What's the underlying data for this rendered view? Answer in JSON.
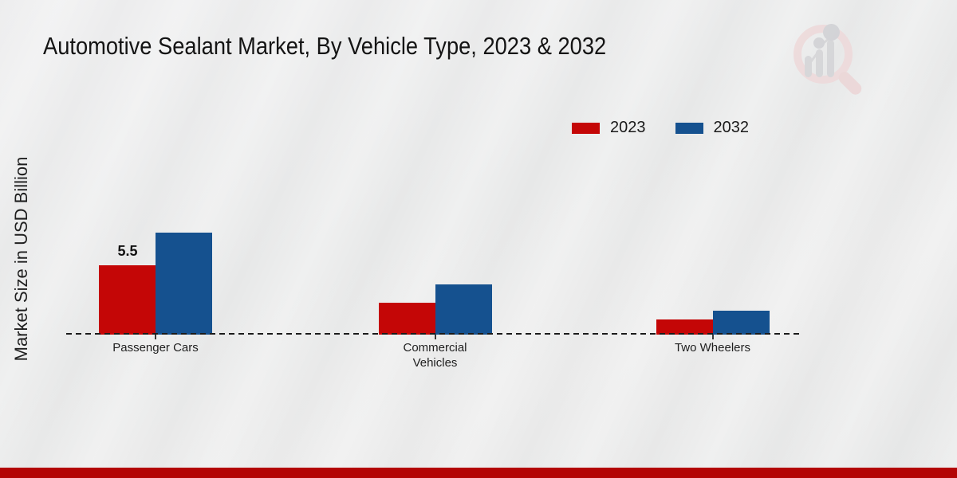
{
  "chart_data": {
    "type": "bar",
    "title": "Automotive Sealant Market, By Vehicle Type, 2023 & 2032",
    "ylabel": "Market Size in USD Billion",
    "xlabel": "",
    "categories": [
      "Passenger Cars",
      "Commercial Vehicles",
      "Two Wheelers"
    ],
    "series": [
      {
        "name": "2023",
        "color": "#c40606",
        "values": [
          5.5,
          2.5,
          1.2
        ]
      },
      {
        "name": "2032",
        "color": "#15518f",
        "values": [
          8.1,
          4.0,
          1.9
        ]
      }
    ],
    "data_labels": [
      {
        "series": "2023",
        "category": "Passenger Cars",
        "text": "5.5"
      }
    ],
    "axis": {
      "baseline_style": "dashed",
      "y_gridlines": false,
      "y_axis_ticks_visible": false,
      "legend_position": "top-right"
    }
  },
  "colors": {
    "footer_bar": "#b30505",
    "background": "#e8e9e9",
    "baseline": "#1b1b1b"
  },
  "icons": {
    "watermark": "chart-magnifier-logo"
  }
}
